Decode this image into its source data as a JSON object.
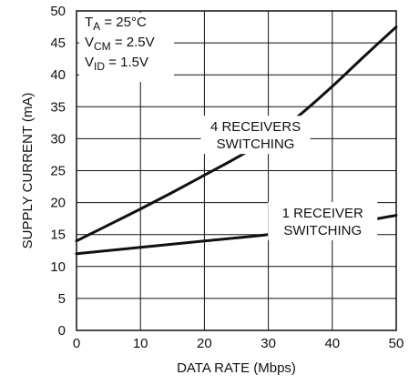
{
  "chart_data": {
    "type": "line",
    "title": "",
    "xlabel": "DATA RATE (Mbps)",
    "ylabel": "SUPPLY CURRENT (mA)",
    "xlim": [
      0,
      50
    ],
    "ylim": [
      0,
      50
    ],
    "x_ticks": [
      "0",
      "10",
      "20",
      "30",
      "40",
      "50"
    ],
    "y_ticks": [
      "0",
      "5",
      "10",
      "15",
      "20",
      "25",
      "30",
      "35",
      "40",
      "45",
      "50"
    ],
    "grid": true,
    "conditions": [
      {
        "symbol": "T",
        "subscript": "A",
        "value": " = 25°C"
      },
      {
        "symbol": "V",
        "subscript": "CM",
        "value": " = 2.5V"
      },
      {
        "symbol": "V",
        "subscript": "ID",
        "value": " = 1.5V"
      }
    ],
    "series": [
      {
        "label_lines": [
          "4 RECEIVERS",
          "SWITCHING"
        ],
        "x": [
          0,
          5,
          10,
          15,
          20,
          25,
          30,
          35,
          40,
          45,
          50
        ],
        "y": [
          14,
          16.5,
          19,
          21.6,
          24.3,
          27,
          30,
          33.8,
          38.2,
          42.9,
          47.5
        ]
      },
      {
        "label_lines": [
          "1 RECEIVER",
          "SWITCHING"
        ],
        "x": [
          0,
          10,
          20,
          30,
          40,
          50
        ],
        "y": [
          12,
          13,
          14,
          15,
          16.3,
          18
        ]
      }
    ]
  }
}
